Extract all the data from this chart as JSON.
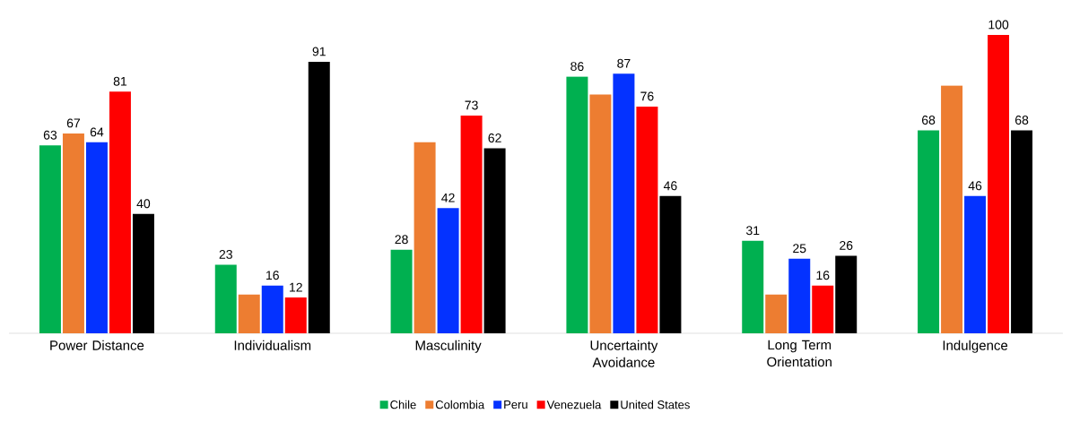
{
  "chart_data": {
    "type": "bar",
    "categories": [
      "Power Distance",
      "Individualism",
      "Masculinity",
      "Uncertainty Avoidance",
      "Long Term Orientation",
      "Indulgence"
    ],
    "series": [
      {
        "name": "Chile",
        "color": "#00b050",
        "values": [
          63,
          23,
          28,
          86,
          31,
          68
        ],
        "value_labels": [
          "63",
          "23",
          "28",
          "86",
          "31",
          "68"
        ]
      },
      {
        "name": "Colombia",
        "color": "#ed7d31",
        "values": [
          67,
          13,
          64,
          80,
          13,
          83
        ],
        "value_labels": [
          "67",
          null,
          null,
          null,
          null,
          null
        ]
      },
      {
        "name": "Peru",
        "color": "#0432ff",
        "values": [
          64,
          16,
          42,
          87,
          25,
          46
        ],
        "value_labels": [
          "64",
          "16",
          "42",
          "87",
          "25",
          "46"
        ]
      },
      {
        "name": "Venezuela",
        "color": "#ff0000",
        "values": [
          81,
          12,
          73,
          76,
          16,
          100
        ],
        "value_labels": [
          "81",
          "12",
          "73",
          "76",
          "16",
          "100"
        ]
      },
      {
        "name": "United States",
        "color": "#000000",
        "values": [
          40,
          91,
          62,
          46,
          26,
          68
        ],
        "value_labels": [
          "40",
          "91",
          "62",
          "46",
          "26",
          "68"
        ]
      }
    ],
    "legend": "bottom"
  }
}
